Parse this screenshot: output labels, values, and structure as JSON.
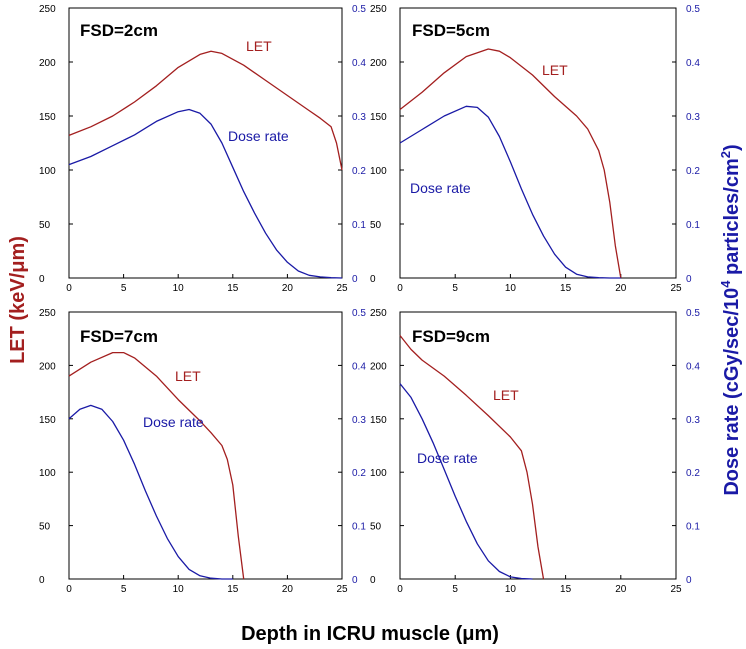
{
  "colors": {
    "let": "#a31f1f",
    "dose": "#1a1aa6",
    "frame": "#000000"
  },
  "axes": {
    "xlabel": "Depth in ICRU muscle (μm)",
    "ylabel_left": "LET (keV/μm)",
    "ylabel_right_prefix": "Dose rate (cGy/sec/10",
    "ylabel_right_sup1": "4",
    "ylabel_right_mid": " particles/cm",
    "ylabel_right_sup2": "2",
    "ylabel_right_suffix": ")"
  },
  "chart_data": [
    {
      "type": "line",
      "title": "FSD=2cm",
      "xlim": [
        0,
        25
      ],
      "ylim_left": [
        0,
        250
      ],
      "ylim_right": [
        0,
        0.5
      ],
      "x_ticks": [
        0,
        5,
        10,
        15,
        20,
        25
      ],
      "y_ticks_left": [
        0,
        50,
        100,
        150,
        200,
        250
      ],
      "y_ticks_right": [
        "0",
        "0.1",
        "0.2",
        "0.3",
        "0.4",
        "0.5"
      ],
      "series": [
        {
          "name": "LET",
          "axis": "left",
          "x": [
            0,
            2,
            4,
            6,
            8,
            10,
            12,
            13,
            14,
            16,
            18,
            20,
            22,
            23,
            24,
            24.5,
            25
          ],
          "y": [
            132,
            140,
            150,
            163,
            178,
            195,
            207,
            210,
            208,
            197,
            183,
            169,
            155,
            148,
            140,
            125,
            100
          ]
        },
        {
          "name": "Dose rate",
          "axis": "right",
          "x": [
            0,
            2,
            4,
            6,
            8,
            10,
            11,
            12,
            13,
            14,
            15,
            16,
            17,
            18,
            19,
            20,
            21,
            22,
            23,
            24,
            25
          ],
          "y": [
            0.21,
            0.225,
            0.245,
            0.265,
            0.29,
            0.308,
            0.312,
            0.305,
            0.285,
            0.25,
            0.205,
            0.16,
            0.12,
            0.083,
            0.052,
            0.029,
            0.013,
            0.005,
            0.002,
            0.0005,
            0
          ]
        }
      ]
    },
    {
      "type": "line",
      "title": "FSD=5cm",
      "xlim": [
        0,
        25
      ],
      "ylim_left": [
        0,
        250
      ],
      "ylim_right": [
        0,
        0.5
      ],
      "x_ticks": [
        0,
        5,
        10,
        15,
        20,
        25
      ],
      "y_ticks_left": [
        0,
        50,
        100,
        150,
        200,
        250
      ],
      "y_ticks_right": [
        "0",
        "0.1",
        "0.2",
        "0.3",
        "0.4",
        "0.5"
      ],
      "series": [
        {
          "name": "LET",
          "axis": "left",
          "x": [
            0,
            2,
            4,
            6,
            8,
            9,
            10,
            12,
            14,
            16,
            17,
            18,
            18.5,
            19,
            19.5,
            20
          ],
          "y": [
            156,
            172,
            190,
            205,
            212,
            210,
            204,
            188,
            168,
            150,
            138,
            118,
            100,
            70,
            30,
            0
          ]
        },
        {
          "name": "Dose rate",
          "axis": "right",
          "x": [
            0,
            2,
            4,
            6,
            7,
            8,
            9,
            10,
            11,
            12,
            13,
            14,
            15,
            16,
            17,
            18,
            19,
            20
          ],
          "y": [
            0.25,
            0.275,
            0.3,
            0.318,
            0.316,
            0.298,
            0.262,
            0.215,
            0.165,
            0.118,
            0.078,
            0.044,
            0.02,
            0.007,
            0.002,
            0.0005,
            0,
            0
          ]
        }
      ]
    },
    {
      "type": "line",
      "title": "FSD=7cm",
      "xlim": [
        0,
        25
      ],
      "ylim_left": [
        0,
        250
      ],
      "ylim_right": [
        0,
        0.5
      ],
      "x_ticks": [
        0,
        5,
        10,
        15,
        20,
        25
      ],
      "y_ticks_left": [
        0,
        50,
        100,
        150,
        200,
        250
      ],
      "y_ticks_right": [
        "0",
        "0.1",
        "0.2",
        "0.3",
        "0.4",
        "0.5"
      ],
      "series": [
        {
          "name": "LET",
          "axis": "left",
          "x": [
            0,
            2,
            4,
            5,
            6,
            8,
            10,
            12,
            13,
            14,
            14.5,
            15,
            15.5,
            16
          ],
          "y": [
            190,
            203,
            212,
            212,
            207,
            190,
            168,
            148,
            137,
            125,
            112,
            88,
            40,
            0
          ]
        },
        {
          "name": "Dose rate",
          "axis": "right",
          "x": [
            0,
            1,
            2,
            3,
            4,
            5,
            6,
            7,
            8,
            9,
            10,
            11,
            12,
            13,
            14,
            15
          ],
          "y": [
            0.3,
            0.318,
            0.325,
            0.318,
            0.295,
            0.26,
            0.215,
            0.165,
            0.118,
            0.076,
            0.042,
            0.018,
            0.006,
            0.0015,
            0,
            0
          ]
        }
      ]
    },
    {
      "type": "line",
      "title": "FSD=9cm",
      "xlim": [
        0,
        25
      ],
      "ylim_left": [
        0,
        250
      ],
      "ylim_right": [
        0,
        0.5
      ],
      "x_ticks": [
        0,
        5,
        10,
        15,
        20,
        25
      ],
      "y_ticks_left": [
        0,
        50,
        100,
        150,
        200,
        250
      ],
      "y_ticks_right": [
        "0",
        "0.1",
        "0.2",
        "0.3",
        "0.4",
        "0.5"
      ],
      "series": [
        {
          "name": "LET",
          "axis": "left",
          "x": [
            0,
            1,
            2,
            4,
            6,
            8,
            10,
            11,
            11.5,
            12,
            12.5,
            13
          ],
          "y": [
            228,
            215,
            205,
            190,
            172,
            153,
            133,
            120,
            100,
            70,
            30,
            0
          ]
        },
        {
          "name": "Dose rate",
          "axis": "right",
          "x": [
            0,
            1,
            2,
            3,
            4,
            5,
            6,
            7,
            8,
            9,
            10,
            11,
            12
          ],
          "y": [
            0.366,
            0.34,
            0.3,
            0.255,
            0.205,
            0.155,
            0.108,
            0.066,
            0.034,
            0.014,
            0.004,
            0.001,
            0
          ]
        }
      ]
    }
  ],
  "curve_labels": [
    {
      "let": "LET",
      "dose": "Dose rate"
    },
    {
      "let": "LET",
      "dose": "Dose rate"
    },
    {
      "let": "LET",
      "dose": "Dose rate"
    },
    {
      "let": "LET",
      "dose": "Dose rate"
    }
  ]
}
